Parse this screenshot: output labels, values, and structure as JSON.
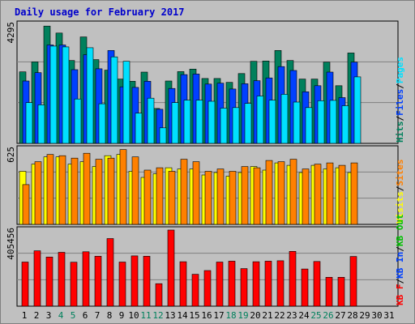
{
  "chart_data": {
    "type": "bar",
    "title": "Daily usage for February 2017",
    "categories": [
      "1",
      "2",
      "3",
      "4",
      "5",
      "6",
      "7",
      "8",
      "9",
      "10",
      "11",
      "12",
      "13",
      "14",
      "15",
      "16",
      "17",
      "18",
      "19",
      "20",
      "21",
      "22",
      "23",
      "24",
      "25",
      "26",
      "27",
      "28",
      "29",
      "30",
      "31"
    ],
    "weekend_days": [
      "4",
      "5",
      "11",
      "12",
      "18",
      "19",
      "25",
      "26"
    ],
    "panels": [
      {
        "id": "hits-files-pages",
        "ymax_label": "4295",
        "ymax": 4295,
        "axis_legend": [
          {
            "text": "Hits",
            "color": "#00805c"
          },
          {
            "text": "/",
            "color": "#000000"
          },
          {
            "text": "Files",
            "color": "#0040ff"
          },
          {
            "text": "/",
            "color": "#000000"
          },
          {
            "text": "Pages",
            "color": "#00e0ff"
          }
        ],
        "series": [
          {
            "name": "Hits",
            "color": "#00805c",
            "values": [
              2580,
              2940,
              4230,
              3980,
              2990,
              3840,
              3020,
              2640,
              2320,
              2240,
              2570,
              1260,
              2250,
              2590,
              2680,
              2340,
              2340,
              2200,
              2520,
              2960,
              2970,
              3350,
              2990,
              2320,
              2320,
              2930,
              2080,
              3260,
              0,
              0,
              0
            ]
          },
          {
            "name": "Files",
            "color": "#0040ff",
            "values": [
              2250,
              2550,
              3550,
              3550,
              2660,
              3200,
              2690,
              3350,
              2040,
              2020,
              2240,
              1230,
              1980,
              2480,
              2500,
              2140,
              2170,
              1960,
              2150,
              2260,
              2360,
              2770,
              2630,
              1860,
              2080,
              2570,
              1650,
              2930,
              0,
              0,
              0
            ]
          },
          {
            "name": "Pages",
            "color": "#00e0ff",
            "values": [
              1470,
              1390,
              3510,
              3480,
              1600,
              3450,
              1430,
              3120,
              2960,
              1090,
              1630,
              560,
              1470,
              1560,
              1560,
              1520,
              1270,
              1290,
              1440,
              1710,
              1560,
              1770,
              1490,
              1290,
              1540,
              1550,
              1360,
              2400,
              0,
              0,
              0
            ]
          }
        ]
      },
      {
        "id": "sites-visits",
        "ymax_label": "625",
        "ymax": 625,
        "axis_legend": [
          {
            "text": "Visits",
            "color": "#ffff00"
          },
          {
            "text": "/",
            "color": "#000000"
          },
          {
            "text": "Sites",
            "color": "#ff8000"
          }
        ],
        "series": [
          {
            "name": "Visits",
            "color": "#ffff00",
            "values": [
              440,
              500,
              560,
              560,
              500,
              520,
              480,
              570,
              580,
              440,
              390,
              420,
              470,
              460,
              460,
              410,
              430,
              400,
              430,
              480,
              450,
              510,
              490,
              430,
              490,
              460,
              470,
              430,
              0,
              0,
              0
            ]
          },
          {
            "name": "Sites",
            "color": "#ff8000",
            "values": [
              330,
              520,
              580,
              570,
              550,
              590,
              540,
              550,
              620,
              560,
              450,
              470,
              440,
              540,
              520,
              440,
              460,
              440,
              480,
              470,
              530,
              520,
              540,
              460,
              500,
              510,
              490,
              510,
              0,
              0,
              0
            ]
          }
        ]
      },
      {
        "id": "kbytes",
        "ymax_label": "405456",
        "ymax": 405456,
        "axis_legend": [
          {
            "text": "KB F",
            "color": "#ff0000"
          },
          {
            "text": "/",
            "color": "#000000"
          },
          {
            "text": "KB In",
            "color": "#0040ff"
          },
          {
            "text": "/",
            "color": "#000000"
          },
          {
            "text": "KB Out",
            "color": "#00c000"
          }
        ],
        "series": [
          {
            "name": "KB F",
            "color": "#ff0000",
            "values": [
              235000,
              295000,
              262000,
              287000,
              234000,
              290000,
              266000,
              360000,
              235000,
              268000,
              266000,
              120000,
              405456,
              237000,
              170000,
              190000,
              235000,
              240000,
              200000,
              237000,
              240000,
              242000,
              292000,
              198000,
              238000,
              154000,
              154000,
              265000,
              0,
              0,
              0
            ]
          }
        ]
      }
    ]
  }
}
